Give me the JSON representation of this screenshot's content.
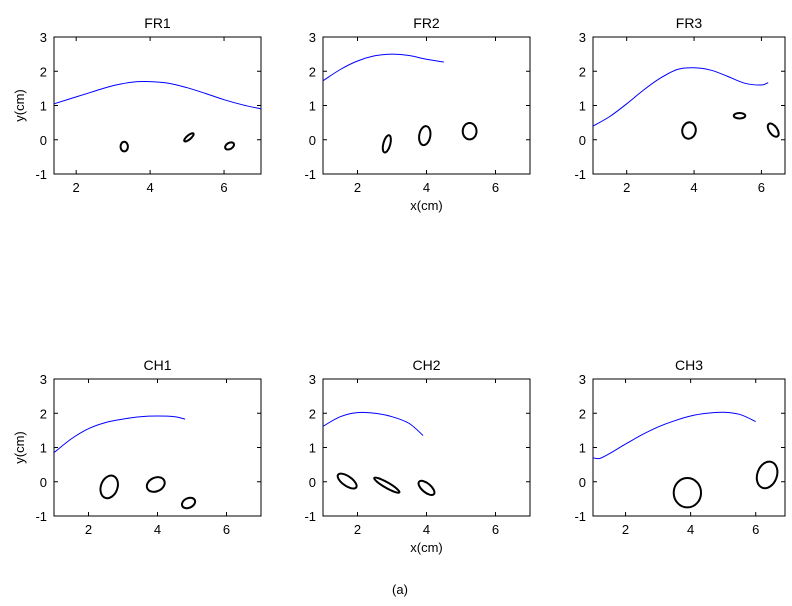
{
  "figure_label": "(a)",
  "chart_data": [
    {
      "type": "line",
      "title": "FR1",
      "xlabel": "",
      "ylabel": "y(cm)",
      "xlim": [
        1.4,
        7.0
      ],
      "ylim": [
        -1,
        3
      ],
      "xticks": [
        2,
        4,
        6
      ],
      "yticks": [
        -1,
        0,
        1,
        2,
        3
      ],
      "curve": {
        "x": [
          1.4,
          2.0,
          2.5,
          3.0,
          3.5,
          3.9,
          4.5,
          5.0,
          5.5,
          6.0,
          6.5,
          7.0
        ],
        "y": [
          1.05,
          1.25,
          1.42,
          1.58,
          1.68,
          1.7,
          1.65,
          1.52,
          1.35,
          1.17,
          1.02,
          0.9
        ]
      },
      "ellipses": [
        {
          "cx": 3.3,
          "cy": -0.2,
          "rx": 0.1,
          "ry": 0.14,
          "angle": 0
        },
        {
          "cx": 5.05,
          "cy": 0.07,
          "rx": 0.16,
          "ry": 0.06,
          "angle": -40
        },
        {
          "cx": 6.15,
          "cy": -0.18,
          "rx": 0.13,
          "ry": 0.09,
          "angle": -30
        }
      ]
    },
    {
      "type": "line",
      "title": "FR2",
      "xlabel": "x(cm)",
      "ylabel": "",
      "xlim": [
        1,
        7
      ],
      "ylim": [
        -1,
        3
      ],
      "xticks": [
        2,
        4,
        6
      ],
      "yticks": [
        -1,
        0,
        1,
        2,
        3
      ],
      "curve": {
        "x": [
          1.0,
          1.5,
          2.0,
          2.5,
          3.0,
          3.5,
          4.0,
          4.5
        ],
        "y": [
          1.72,
          2.05,
          2.3,
          2.45,
          2.5,
          2.46,
          2.35,
          2.27
        ]
      },
      "ellipses": [
        {
          "cx": 2.85,
          "cy": -0.12,
          "rx": 0.1,
          "ry": 0.26,
          "angle": 15
        },
        {
          "cx": 3.95,
          "cy": 0.12,
          "rx": 0.16,
          "ry": 0.28,
          "angle": 10
        },
        {
          "cx": 5.25,
          "cy": 0.25,
          "rx": 0.2,
          "ry": 0.24,
          "angle": 0
        }
      ]
    },
    {
      "type": "line",
      "title": "FR3",
      "xlabel": "",
      "ylabel": "",
      "xlim": [
        1,
        6.7
      ],
      "ylim": [
        -1,
        3
      ],
      "xticks": [
        2,
        4,
        6
      ],
      "yticks": [
        -1,
        0,
        1,
        2,
        3
      ],
      "curve": {
        "x": [
          1.0,
          1.5,
          2.0,
          2.5,
          3.0,
          3.5,
          4.0,
          4.5,
          5.0,
          5.5,
          6.0,
          6.2
        ],
        "y": [
          0.4,
          0.68,
          1.05,
          1.45,
          1.8,
          2.05,
          2.1,
          2.03,
          1.85,
          1.65,
          1.6,
          1.67
        ]
      },
      "ellipses": [
        {
          "cx": 3.85,
          "cy": 0.27,
          "rx": 0.2,
          "ry": 0.24,
          "angle": 10
        },
        {
          "cx": 5.35,
          "cy": 0.7,
          "rx": 0.17,
          "ry": 0.08,
          "angle": 0
        },
        {
          "cx": 6.35,
          "cy": 0.28,
          "rx": 0.12,
          "ry": 0.22,
          "angle": -35
        }
      ]
    },
    {
      "type": "line",
      "title": "CH1",
      "xlabel": "",
      "ylabel": "y(cm)",
      "xlim": [
        1,
        7
      ],
      "ylim": [
        -1,
        3
      ],
      "xticks": [
        2,
        4,
        6
      ],
      "yticks": [
        -1,
        0,
        1,
        2,
        3
      ],
      "curve": {
        "x": [
          1.0,
          1.5,
          2.0,
          2.5,
          3.0,
          3.5,
          4.0,
          4.5,
          4.8
        ],
        "y": [
          0.85,
          1.25,
          1.55,
          1.73,
          1.83,
          1.9,
          1.92,
          1.9,
          1.83
        ]
      },
      "ellipses": [
        {
          "cx": 2.6,
          "cy": -0.15,
          "rx": 0.24,
          "ry": 0.34,
          "angle": 20
        },
        {
          "cx": 3.95,
          "cy": -0.08,
          "rx": 0.27,
          "ry": 0.2,
          "angle": -25
        },
        {
          "cx": 4.9,
          "cy": -0.62,
          "rx": 0.2,
          "ry": 0.14,
          "angle": -25
        }
      ]
    },
    {
      "type": "line",
      "title": "CH2",
      "xlabel": "x(cm)",
      "ylabel": "",
      "xlim": [
        1,
        7
      ],
      "ylim": [
        -1,
        3
      ],
      "xticks": [
        2,
        4,
        6
      ],
      "yticks": [
        -1,
        0,
        1,
        2,
        3
      ],
      "curve": {
        "x": [
          1.0,
          1.5,
          2.0,
          2.5,
          3.0,
          3.5,
          3.9
        ],
        "y": [
          1.62,
          1.9,
          2.02,
          2.0,
          1.9,
          1.7,
          1.35
        ]
      },
      "ellipses": [
        {
          "cx": 1.7,
          "cy": 0.02,
          "rx": 0.32,
          "ry": 0.14,
          "angle": 35
        },
        {
          "cx": 2.85,
          "cy": -0.1,
          "rx": 0.42,
          "ry": 0.08,
          "angle": 30
        },
        {
          "cx": 4.0,
          "cy": -0.18,
          "rx": 0.28,
          "ry": 0.13,
          "angle": 40
        }
      ]
    },
    {
      "type": "line",
      "title": "CH3",
      "xlabel": "",
      "ylabel": "",
      "xlim": [
        1,
        6.9
      ],
      "ylim": [
        -1,
        3
      ],
      "xticks": [
        2,
        4,
        6
      ],
      "yticks": [
        -1,
        0,
        1,
        2,
        3
      ],
      "curve": {
        "x": [
          1.0,
          1.2,
          1.5,
          2.0,
          2.5,
          3.0,
          3.5,
          4.0,
          4.5,
          5.0,
          5.5,
          6.0
        ],
        "y": [
          0.7,
          0.68,
          0.82,
          1.1,
          1.37,
          1.6,
          1.78,
          1.92,
          2.0,
          2.03,
          1.97,
          1.76
        ]
      },
      "ellipses": [
        {
          "cx": 3.9,
          "cy": -0.32,
          "rx": 0.42,
          "ry": 0.43,
          "angle": 0
        },
        {
          "cx": 6.35,
          "cy": 0.2,
          "rx": 0.3,
          "ry": 0.4,
          "angle": 20
        }
      ]
    }
  ]
}
